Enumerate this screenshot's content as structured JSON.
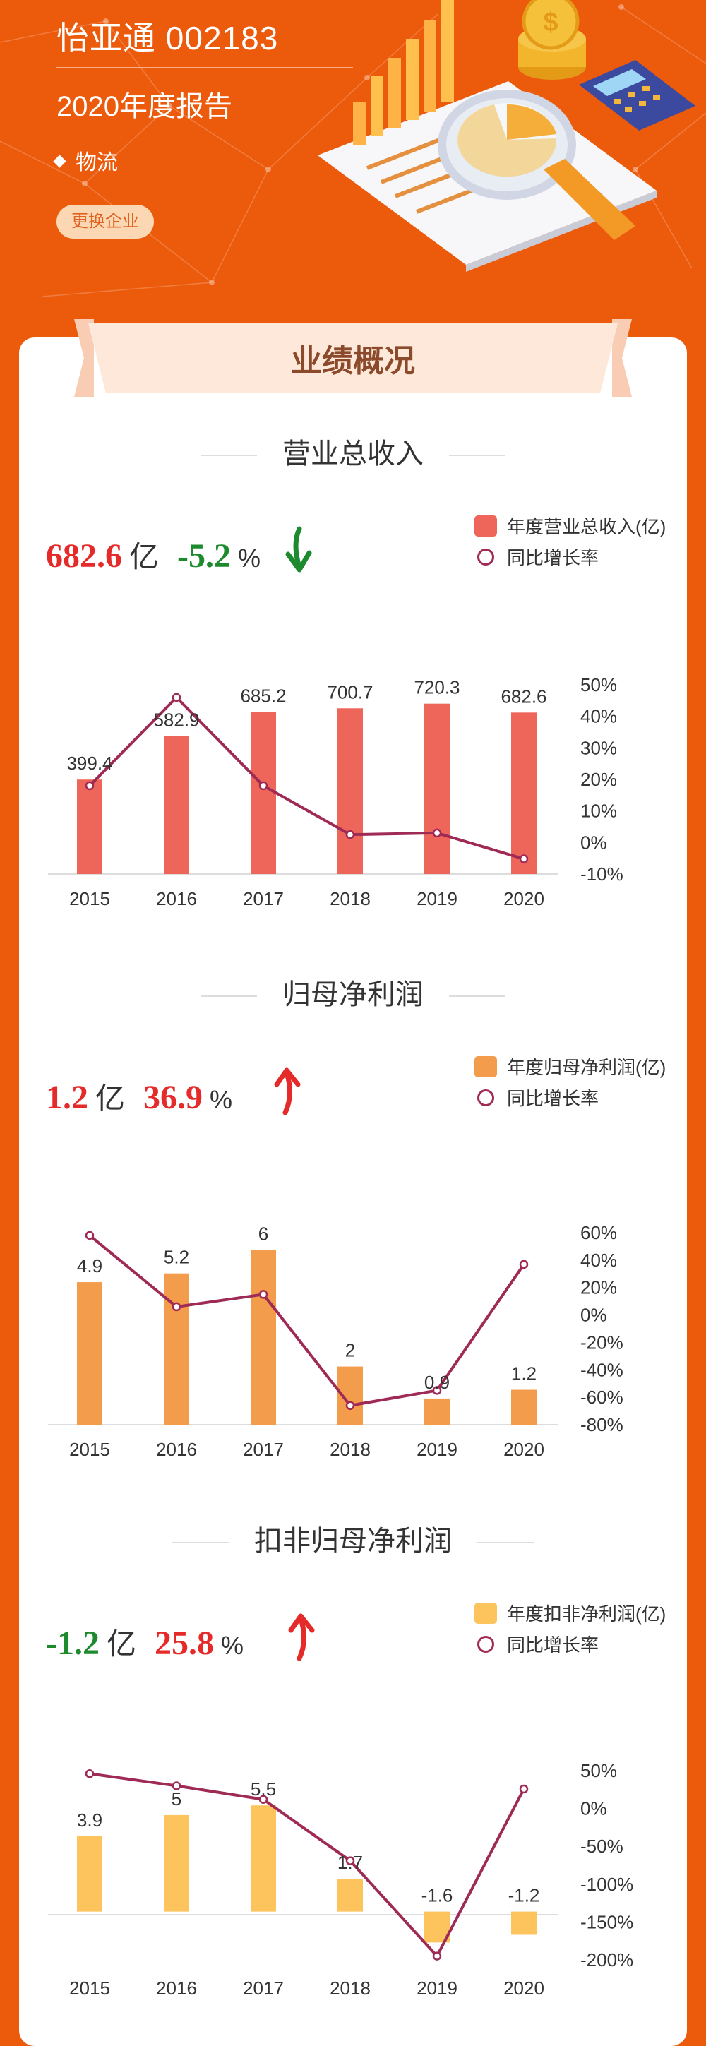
{
  "header": {
    "title": "怡亚通 002183",
    "subtitle": "2020年度报告",
    "industry": "物流",
    "change_button": "更换企业"
  },
  "section_banner": "业绩概况",
  "colors": {
    "background": "#EC5A0C",
    "revenue_bar": "#EE6659",
    "profit_bar": "#F39C4B",
    "deducted_bar": "#FDC35C",
    "line": "#9E2A55",
    "up": "#E52A2A",
    "down": "#1E8A2E"
  },
  "sections": [
    {
      "title": "营业总收入",
      "value": "682.6",
      "value_unit": "亿",
      "value_trend": "down",
      "growth": "-5.2",
      "growth_unit": "%",
      "growth_trend": "down",
      "arrow_icon": "arrow-down-icon",
      "legend_bar": "年度营业总收入(亿)",
      "legend_line": "同比增长率"
    },
    {
      "title": "归母净利润",
      "value": "1.2",
      "value_unit": "亿",
      "value_trend": "up",
      "growth": "36.9",
      "growth_unit": "%",
      "growth_trend": "up",
      "arrow_icon": "arrow-up-icon",
      "legend_bar": "年度归母净利润(亿)",
      "legend_line": "同比增长率"
    },
    {
      "title": "扣非归母净利润",
      "value": "-1.2",
      "value_unit": "亿",
      "value_trend": "down",
      "growth": "25.8",
      "growth_unit": "%",
      "growth_trend": "up",
      "arrow_icon": "arrow-up-icon",
      "legend_bar": "年度扣非净利润(亿)",
      "legend_line": "同比增长率"
    }
  ],
  "chart_data": [
    {
      "type": "bar",
      "categories": [
        "2015",
        "2016",
        "2017",
        "2018",
        "2019",
        "2020"
      ],
      "series": [
        {
          "name": "年度营业总收入(亿)",
          "type": "bar",
          "values": [
            399.4,
            582.9,
            685.2,
            700.7,
            720.3,
            682.6
          ],
          "value_labels": [
            "399.4",
            "582.9",
            "685.2",
            "700.7",
            "720.3",
            "682.6"
          ]
        },
        {
          "name": "同比增长率",
          "type": "line",
          "axis": "right",
          "values": [
            18,
            46,
            18,
            2.5,
            3,
            -5.2
          ]
        }
      ],
      "bar_ylim": [
        0,
        800
      ],
      "right_ylim": [
        -10,
        50
      ],
      "right_ticks": [
        "50%",
        "40%",
        "30%",
        "20%",
        "10%",
        "0%",
        "-10%"
      ],
      "grid": false,
      "legend": "top-right"
    },
    {
      "type": "bar",
      "categories": [
        "2015",
        "2016",
        "2017",
        "2018",
        "2019",
        "2020"
      ],
      "series": [
        {
          "name": "年度归母净利润(亿)",
          "type": "bar",
          "values": [
            4.9,
            5.2,
            6,
            2,
            0.9,
            1.2
          ],
          "value_labels": [
            "4.9",
            "5.2",
            "6",
            "2",
            "0.9",
            "1.2"
          ]
        },
        {
          "name": "同比增长率",
          "type": "line",
          "axis": "right",
          "values": [
            58,
            6,
            15,
            -66,
            -55,
            36.9
          ]
        }
      ],
      "bar_ylim": [
        0,
        6.6
      ],
      "right_ylim": [
        -80,
        60
      ],
      "right_ticks": [
        "60%",
        "40%",
        "20%",
        "0%",
        "-20%",
        "-40%",
        "-60%",
        "-80%"
      ],
      "grid": false,
      "legend": "top-right"
    },
    {
      "type": "bar",
      "categories": [
        "2015",
        "2016",
        "2017",
        "2018",
        "2019",
        "2020"
      ],
      "series": [
        {
          "name": "年度扣非净利润(亿)",
          "type": "bar",
          "values": [
            3.9,
            5,
            5.5,
            1.7,
            -1.6,
            -1.2
          ],
          "value_labels": [
            "3.9",
            "5",
            "5.5",
            "1.7",
            "-1.6",
            "-1.2"
          ]
        },
        {
          "name": "同比增长率",
          "type": "line",
          "axis": "right",
          "values": [
            46,
            30,
            12,
            -69,
            -195,
            25.8
          ]
        }
      ],
      "bar_ylim": [
        -2.5,
        7.3
      ],
      "right_ylim": [
        -200,
        50
      ],
      "right_ticks": [
        "50%",
        "0%",
        "-50%",
        "-100%",
        "-150%",
        "-200%"
      ],
      "grid": false,
      "legend": "top-right"
    }
  ]
}
